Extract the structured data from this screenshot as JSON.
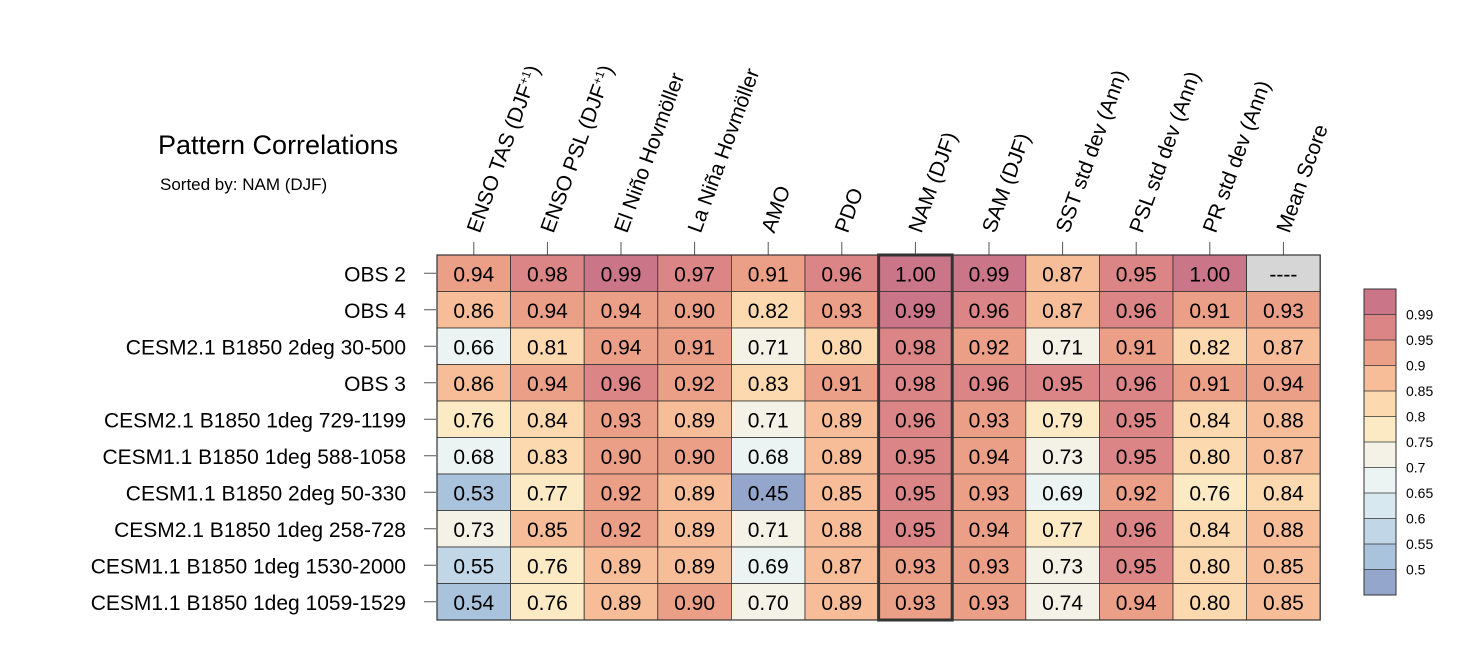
{
  "chart_data": {
    "type": "heatmap",
    "title": "Pattern Correlations",
    "subtitle": "Sorted by: NAM (DJF)",
    "highlighted_column": "NAM (DJF)",
    "columns": [
      {
        "label": "ENSO TAS (DJF",
        "sup": "+1",
        "tail": ")"
      },
      {
        "label": "ENSO PSL (DJF",
        "sup": "+1",
        "tail": ")"
      },
      {
        "label": "El Niño Hovmöller"
      },
      {
        "label": "La Niña Hovmöller"
      },
      {
        "label": "AMO"
      },
      {
        "label": "PDO"
      },
      {
        "label": "NAM (DJF)"
      },
      {
        "label": "SAM (DJF)"
      },
      {
        "label": "SST std dev (Ann)"
      },
      {
        "label": "PSL std dev (Ann)"
      },
      {
        "label": "PR std dev (Ann)"
      },
      {
        "label": "Mean Score"
      }
    ],
    "rows": [
      {
        "name": "OBS 2",
        "values": [
          0.94,
          0.98,
          0.99,
          0.97,
          0.91,
          0.96,
          1.0,
          0.99,
          0.87,
          0.95,
          1.0,
          null
        ]
      },
      {
        "name": "OBS 4",
        "values": [
          0.86,
          0.94,
          0.94,
          0.9,
          0.82,
          0.93,
          0.99,
          0.96,
          0.87,
          0.96,
          0.91,
          0.93
        ]
      },
      {
        "name": "CESM2.1 B1850 2deg 30-500",
        "values": [
          0.66,
          0.81,
          0.94,
          0.91,
          0.71,
          0.8,
          0.98,
          0.92,
          0.71,
          0.91,
          0.82,
          0.87
        ]
      },
      {
        "name": "OBS 3",
        "values": [
          0.86,
          0.94,
          0.96,
          0.92,
          0.83,
          0.91,
          0.98,
          0.96,
          0.95,
          0.96,
          0.91,
          0.94
        ]
      },
      {
        "name": "CESM2.1 B1850 1deg 729-1199",
        "values": [
          0.76,
          0.84,
          0.93,
          0.89,
          0.71,
          0.89,
          0.96,
          0.93,
          0.79,
          0.95,
          0.84,
          0.88
        ]
      },
      {
        "name": "CESM1.1 B1850 1deg 588-1058",
        "values": [
          0.68,
          0.83,
          0.9,
          0.9,
          0.68,
          0.89,
          0.95,
          0.94,
          0.73,
          0.95,
          0.8,
          0.87
        ]
      },
      {
        "name": "CESM1.1 B1850 2deg 50-330",
        "values": [
          0.53,
          0.77,
          0.92,
          0.89,
          0.45,
          0.85,
          0.95,
          0.93,
          0.69,
          0.92,
          0.76,
          0.84
        ]
      },
      {
        "name": "CESM2.1 B1850 1deg 258-728",
        "values": [
          0.73,
          0.85,
          0.92,
          0.89,
          0.71,
          0.88,
          0.95,
          0.94,
          0.77,
          0.96,
          0.84,
          0.88
        ]
      },
      {
        "name": "CESM1.1 B1850 1deg 1530-2000",
        "values": [
          0.55,
          0.76,
          0.89,
          0.89,
          0.69,
          0.87,
          0.93,
          0.93,
          0.73,
          0.95,
          0.8,
          0.85
        ]
      },
      {
        "name": "CESM1.1 B1850 1deg 1059-1529",
        "values": [
          0.54,
          0.76,
          0.89,
          0.9,
          0.7,
          0.89,
          0.93,
          0.93,
          0.74,
          0.94,
          0.8,
          0.85
        ]
      }
    ],
    "missing_label": "----",
    "missing_color": "#d6d6d6",
    "colorbar": {
      "levels": [
        "0.99",
        "0.95",
        "0.9",
        "0.85",
        "0.8",
        "0.75",
        "0.7",
        "0.65",
        "0.6",
        "0.55",
        "0.5"
      ],
      "thresholds": [
        0.5,
        0.55,
        0.6,
        0.65,
        0.7,
        0.75,
        0.8,
        0.85,
        0.9,
        0.95,
        0.99
      ],
      "colors": [
        "#94a6cb",
        "#a9c3dd",
        "#c1d6e6",
        "#d8e8f0",
        "#ebf3f3",
        "#f4f2e6",
        "#fbeac4",
        "#fcd9ae",
        "#f6bd98",
        "#ec9f87",
        "#dc8587",
        "#cb7589"
      ]
    }
  }
}
